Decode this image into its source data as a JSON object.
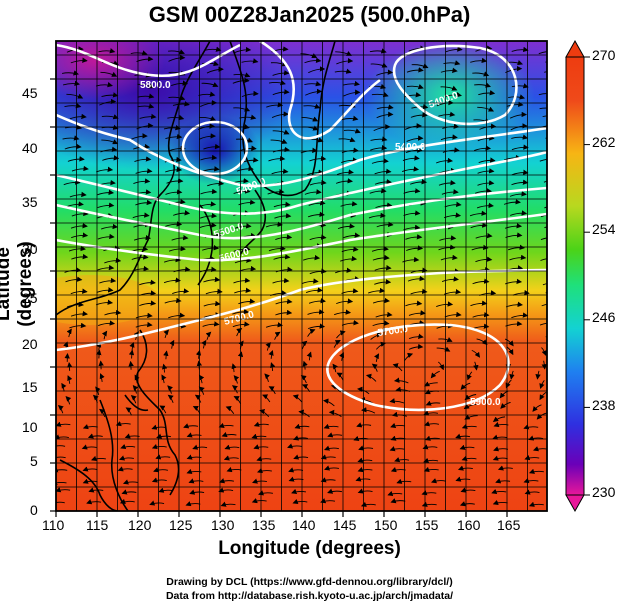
{
  "title": "GSM 00Z28Jan2025 (500.0hPa)",
  "axes": {
    "xlabel": "Longitude (degrees)",
    "ylabel": "Latitude  (degrees)",
    "x_ticks": [
      "110",
      "115",
      "120",
      "125",
      "130",
      "135",
      "140",
      "145",
      "150",
      "155",
      "160",
      "165"
    ],
    "y_ticks": [
      "0",
      "5",
      "10",
      "15",
      "20",
      "25",
      "30",
      "35",
      "40",
      "45"
    ]
  },
  "colorbar": {
    "labels": [
      "270",
      "262",
      "254",
      "246",
      "238",
      "230"
    ],
    "min": 230,
    "max": 270,
    "colors": [
      "#e8179a",
      "#6a00b8",
      "#2f2fe0",
      "#1f7ff0",
      "#13d2d2",
      "#1fe07a",
      "#4bd318",
      "#b8d81f",
      "#f7b514",
      "#ef4a1a",
      "#ee3c10"
    ]
  },
  "contour_labels": [
    "5400.0",
    "5400.0",
    "5400.0",
    "5500.0",
    "5600.0",
    "5700.0",
    "5700.0",
    "5800.0",
    "5900.0"
  ],
  "credits": {
    "line1": "Drawing by DCL (https://www.gfd-dennou.org/library/dcl/)",
    "line2": "Data from http://database.rish.kyoto-u.ac.jp/arch/jmadata/"
  }
}
